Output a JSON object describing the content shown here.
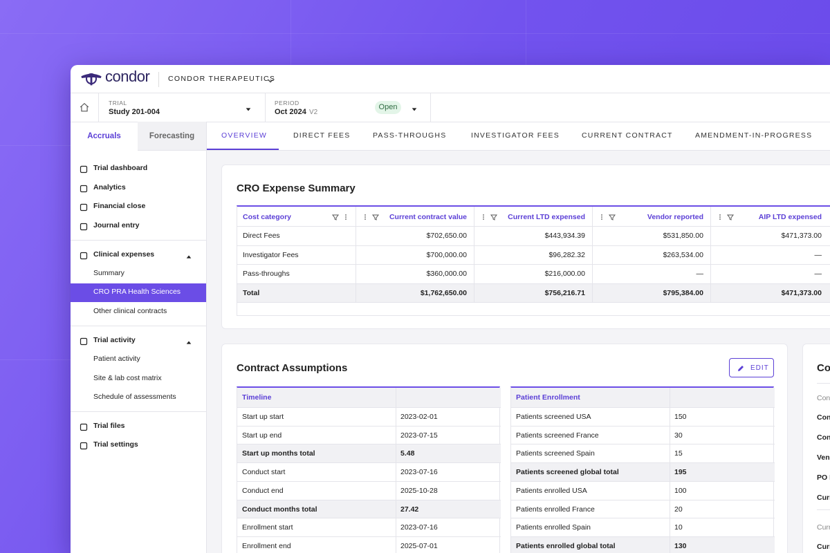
{
  "header": {
    "brand": "condor",
    "org": "CONDOR THERAPEUTICS"
  },
  "filters": {
    "trial_label": "TRIAL",
    "trial": "Study 201-004",
    "period_label": "PERIOD",
    "period": "Oct 2024",
    "version": "V2",
    "status": "Open"
  },
  "side_tabs": [
    "Accruals",
    "Forecasting"
  ],
  "tabs": [
    "OVERVIEW",
    "DIRECT FEES",
    "PASS-THROUGHS",
    "INVESTIGATOR FEES",
    "CURRENT CONTRACT",
    "AMENDMENT-IN-PROGRESS"
  ],
  "nav": {
    "top": [
      "Trial dashboard",
      "Analytics",
      "Financial close",
      "Journal entry"
    ],
    "clinical": {
      "label": "Clinical expenses",
      "items": [
        "Summary",
        "CRO PRA Health Sciences",
        "Other clinical contracts"
      ]
    },
    "activity": {
      "label": "Trial activity",
      "items": [
        "Patient activity",
        "Site & lab cost matrix",
        "Schedule of assessments"
      ]
    },
    "bottom": [
      "Trial files",
      "Trial settings"
    ]
  },
  "cro_summary": {
    "title": "CRO Expense Summary",
    "columns": [
      "Cost category",
      "Current contract value",
      "Current LTD expensed",
      "Vendor reported",
      "AIP LTD expensed"
    ],
    "rows": [
      [
        "Direct Fees",
        "$702,650.00",
        "$443,934.39",
        "$531,850.00",
        "$471,373.00"
      ],
      [
        "Investigator Fees",
        "$700,000.00",
        "$96,282.32",
        "$263,534.00",
        "—"
      ],
      [
        "Pass-throughs",
        "$360,000.00",
        "$216,000.00",
        "—",
        "—"
      ]
    ],
    "total": [
      "Total",
      "$1,762,650.00",
      "$756,216.71",
      "$795,384.00",
      "$471,373.00"
    ]
  },
  "contract_assumptions": {
    "title": "Contract Assumptions",
    "edit": "EDIT",
    "timeline": {
      "header": "Timeline",
      "rows": [
        [
          "Start up start",
          "2023-02-01"
        ],
        [
          "Start up end",
          "2023-07-15"
        ],
        [
          "Start up months total",
          "5.48"
        ],
        [
          "Conduct start",
          "2023-07-16"
        ],
        [
          "Conduct end",
          "2025-10-28"
        ],
        [
          "Conduct months total",
          "27.42"
        ],
        [
          "Enrollment start",
          "2023-07-16"
        ],
        [
          "Enrollment end",
          "2025-07-01"
        ]
      ]
    },
    "enrollment": {
      "header": "Patient Enrollment",
      "rows": [
        [
          "Patients screened USA",
          "150"
        ],
        [
          "Patients screened France",
          "30"
        ],
        [
          "Patients screened Spain",
          "15"
        ],
        [
          "Patients screened global total",
          "195"
        ],
        [
          "Patients enrolled USA",
          "100"
        ],
        [
          "Patients enrolled France",
          "20"
        ],
        [
          "Patients enrolled Spain",
          "10"
        ],
        [
          "Patients enrolled global total",
          "130"
        ]
      ]
    }
  },
  "side_card": {
    "title": "Co",
    "rows": [
      "Con",
      "Con",
      "Con",
      "Vend",
      "PO N",
      "Curr",
      "Curr",
      "Curr"
    ]
  }
}
